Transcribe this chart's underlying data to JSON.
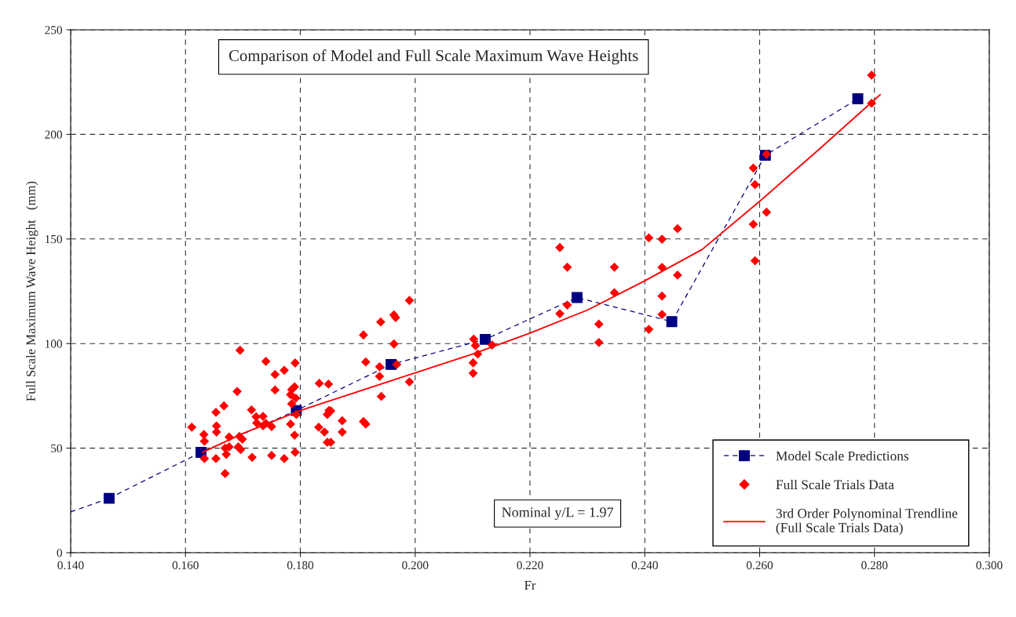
{
  "chart_data": {
    "type": "scatter",
    "title": "Comparison of Model and Full Scale Maximum Wave Heights",
    "xlabel": "Fr",
    "ylabel": "Full Scale Maximum Wave Height   (mm)",
    "xlim": [
      0.14,
      0.3
    ],
    "xticks": [
      {
        "value": 0.14,
        "label": "0.140"
      },
      {
        "value": 0.16,
        "label": "0.160"
      },
      {
        "value": 0.18,
        "label": "0.180"
      },
      {
        "value": 0.2,
        "label": "0.200"
      },
      {
        "value": 0.22,
        "label": "0.220"
      },
      {
        "value": 0.24,
        "label": "0.240"
      },
      {
        "value": 0.26,
        "label": "0.260"
      },
      {
        "value": 0.28,
        "label": "0.280"
      },
      {
        "value": 0.3,
        "label": "0.300"
      }
    ],
    "ylim": [
      0,
      250
    ],
    "yticks": [
      0,
      50,
      100,
      150,
      200,
      250
    ],
    "grid": true,
    "legend": "bottom right",
    "annotations": [
      "Nominal y/L = 1.97"
    ],
    "series": [
      {
        "type": "line",
        "color": "#000080",
        "line_style": "dashed",
        "x": [
          0.14,
          0.1467
        ],
        "values": [
          19.5,
          26
        ]
      },
      {
        "name": "Model Scale Predictions",
        "type": "line",
        "color": "#000080",
        "marker": "square",
        "line_style": "dashed",
        "x": [
          0.1467,
          0.1627,
          0.1793,
          0.1958,
          0.2122,
          0.2282,
          0.2447,
          0.261,
          0.2771
        ],
        "values": [
          26,
          48,
          68,
          90,
          102,
          122,
          110.5,
          190,
          217
        ]
      },
      {
        "name": "Full Scale Trials Data",
        "color": "#ff0000",
        "marker": "diamond",
        "x": [
          0.1611,
          0.1632,
          0.1633,
          0.1633,
          0.1653,
          0.1654,
          0.1654,
          0.1653,
          0.1667,
          0.1669,
          0.1669,
          0.1671,
          0.1676,
          0.1676,
          0.169,
          0.1695,
          0.1694,
          0.1692,
          0.1696,
          0.1699,
          0.1715,
          0.1716,
          0.1723,
          0.1724,
          0.1735,
          0.1735,
          0.174,
          0.174,
          0.175,
          0.175,
          0.1756,
          0.1756,
          0.1772,
          0.1772,
          0.1783,
          0.1785,
          0.179,
          0.1791,
          0.1792,
          0.1785,
          0.1793,
          0.1783,
          0.179,
          0.1791,
          0.1833,
          0.1849,
          0.185,
          0.1853,
          0.1847,
          0.1832,
          0.1842,
          0.1847,
          0.1853,
          0.1873,
          0.1873,
          0.191,
          0.1914,
          0.191,
          0.1914,
          0.194,
          0.1963,
          0.1966,
          0.1963,
          0.1938,
          0.1968,
          0.1938,
          0.1941,
          0.199,
          0.199,
          0.2102,
          0.2105,
          0.2109,
          0.2101,
          0.2101,
          0.2134,
          0.2252,
          0.2265,
          0.2347,
          0.2347,
          0.2265,
          0.2252,
          0.232,
          0.232,
          0.2407,
          0.243,
          0.2457,
          0.243,
          0.2457,
          0.243,
          0.243,
          0.2407,
          0.2592,
          0.2795,
          0.2795,
          0.2612,
          0.2589,
          0.2592,
          0.2589,
          0.2612
        ],
        "values": [
          60,
          56.5,
          53.3,
          45,
          67.1,
          60.6,
          57.7,
          45,
          70.2,
          37.9,
          50,
          47,
          55.3,
          50.6,
          77.1,
          96.8,
          55.6,
          50.6,
          49.3,
          54.3,
          68.3,
          45.6,
          65,
          62,
          65.2,
          60.7,
          61.8,
          91.5,
          60.3,
          46.5,
          85.2,
          77.8,
          87.2,
          45,
          75.6,
          78,
          79.3,
          90.7,
          73.9,
          71.2,
          66.1,
          61.5,
          56.2,
          48,
          81,
          80.6,
          68,
          67.8,
          66.1,
          60,
          57.7,
          52.8,
          52.8,
          63.1,
          57.7,
          104.1,
          91.2,
          62.7,
          61.5,
          110.3,
          113.7,
          112.4,
          99.8,
          88.9,
          90,
          84.3,
          74.7,
          120.6,
          81.7,
          102.1,
          99,
          95,
          90.8,
          85.8,
          99.3,
          145.9,
          136.5,
          136.5,
          124.3,
          118.4,
          114.3,
          109.3,
          100.5,
          150.5,
          149.9,
          154.9,
          136.4,
          132.7,
          122.7,
          113.9,
          106.8,
          139.6,
          228.3,
          214.9,
          190.5,
          183.9,
          176,
          157,
          162.8
        ]
      },
      {
        "name": "3rd Order Polynominal Trendline\n(Full Scale Trials Data)",
        "type": "line",
        "color": "#ff0000",
        "marker": "none",
        "line_style": "solid",
        "x": [
          0.163,
          0.17,
          0.18,
          0.19,
          0.2,
          0.21,
          0.22,
          0.23,
          0.24,
          0.25,
          0.26,
          0.27,
          0.281
        ],
        "values": [
          48,
          57,
          68,
          77,
          86,
          95,
          105,
          116,
          130,
          145,
          168,
          192,
          219
        ]
      }
    ]
  }
}
